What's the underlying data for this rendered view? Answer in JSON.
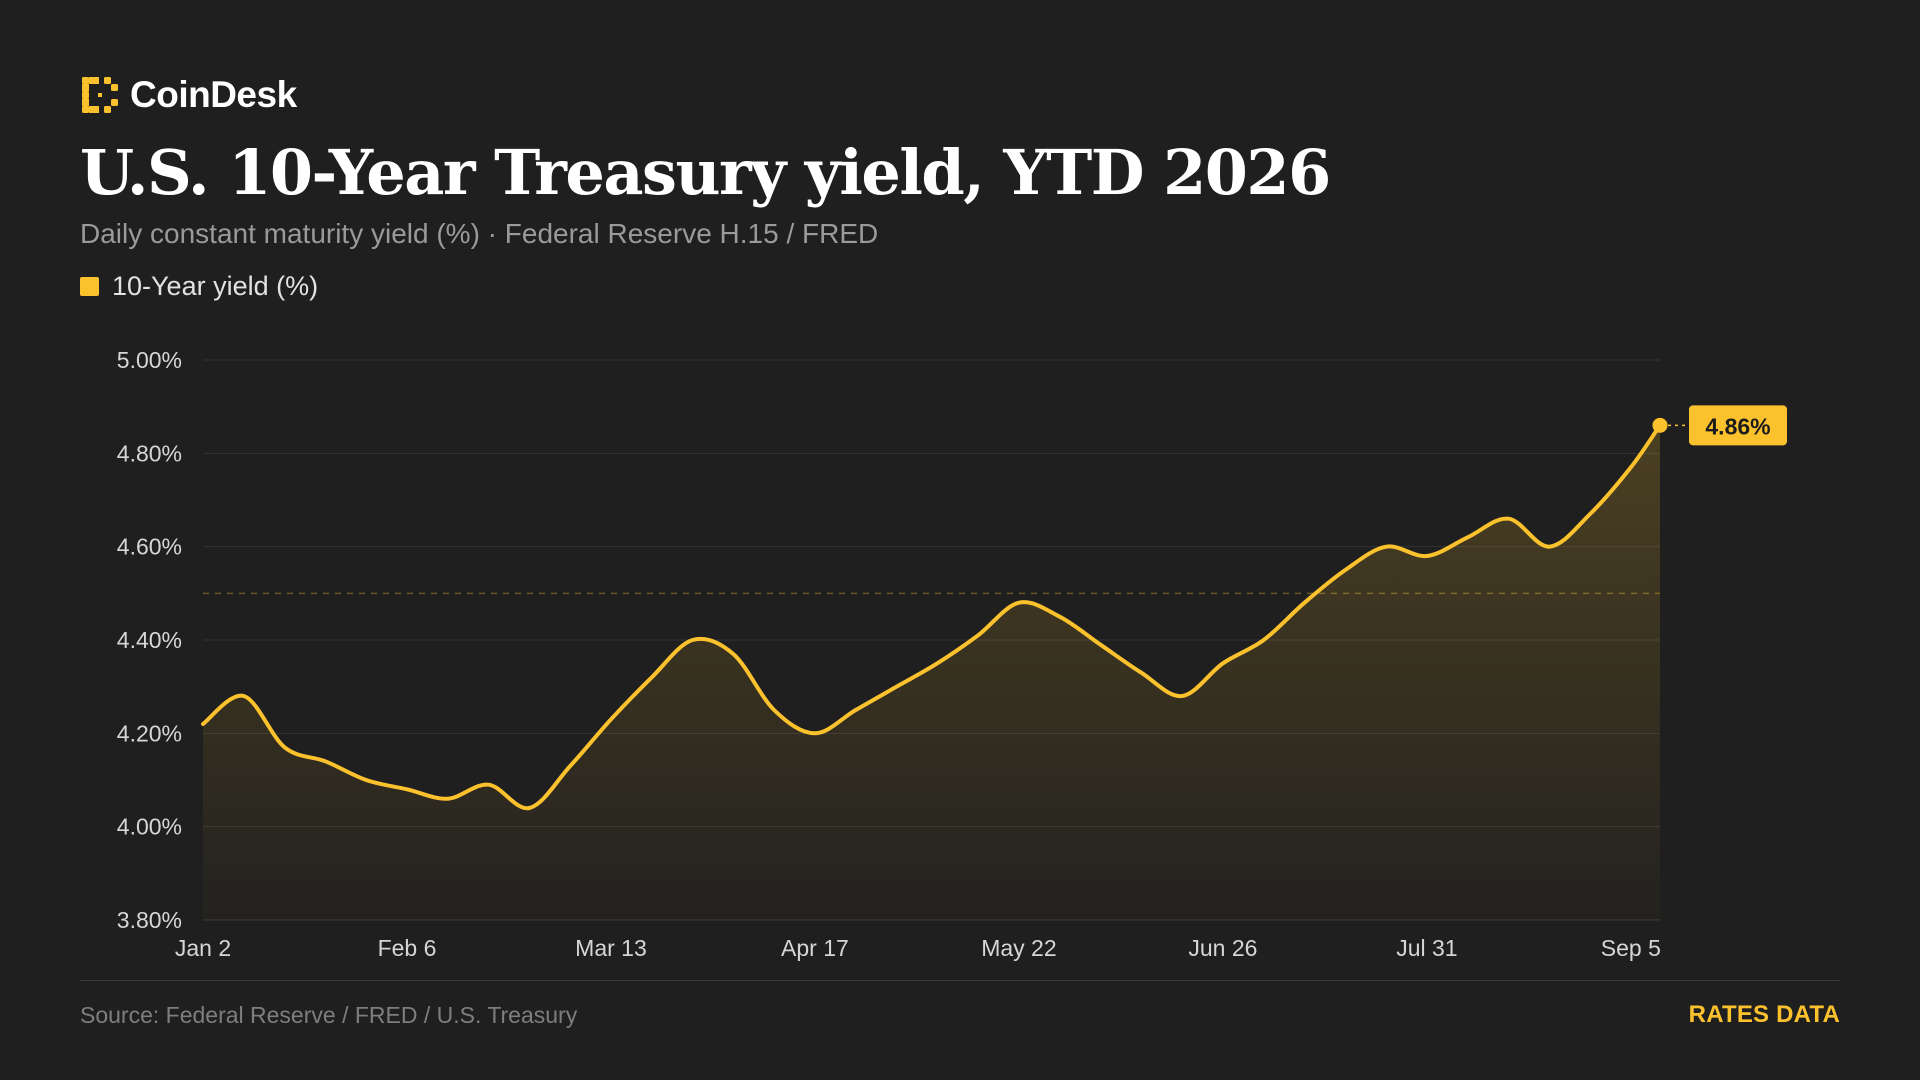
{
  "brand": {
    "name": "CoinDesk",
    "logo_icon": "coindesk-logo-icon"
  },
  "title": "U.S. 10-Year Treasury yield, YTD 2026",
  "subtitle": "Daily constant maturity yield (%) · Federal Reserve H.15 / FRED",
  "legend": {
    "label": "10-Year yield (%)",
    "color": "#fcc22d"
  },
  "footer": {
    "source": "Source: Federal Reserve / FRED / U.S. Treasury",
    "tag": "RATES DATA"
  },
  "colors": {
    "background": "#1f1f1f",
    "accent": "#fcc22d",
    "grid": "#333333",
    "text_muted": "#9a9a9a"
  },
  "chart_data": {
    "type": "area",
    "title": "U.S. 10-Year Treasury yield, YTD 2026",
    "subtitle": "Daily constant maturity yield (%) · Federal Reserve H.15 / FRED",
    "xlabel": "",
    "ylabel": "",
    "x_tick_labels": [
      "Jan 2",
      "Feb 6",
      "Mar 13",
      "Apr 17",
      "May 22",
      "Jun 26",
      "Jul 31",
      "Sep 5"
    ],
    "y_tick_labels": [
      "3.80%",
      "4.00%",
      "4.20%",
      "4.40%",
      "4.60%",
      "4.80%",
      "5.00%"
    ],
    "ylim": [
      3.8,
      5.0
    ],
    "xlim": [
      "2026-01-02",
      "2026-09-09"
    ],
    "grid": true,
    "reference_line": 4.5,
    "legend_position": "top-left",
    "series": [
      {
        "name": "10-Year yield (%)",
        "color": "#fcc22d",
        "x": [
          "2026-01-02",
          "2026-01-09",
          "2026-01-16",
          "2026-01-23",
          "2026-01-30",
          "2026-02-06",
          "2026-02-13",
          "2026-02-20",
          "2026-02-27",
          "2026-03-06",
          "2026-03-13",
          "2026-03-20",
          "2026-03-27",
          "2026-04-03",
          "2026-04-10",
          "2026-04-17",
          "2026-04-24",
          "2026-05-01",
          "2026-05-08",
          "2026-05-15",
          "2026-05-22",
          "2026-05-29",
          "2026-06-05",
          "2026-06-12",
          "2026-06-19",
          "2026-06-26",
          "2026-07-03",
          "2026-07-10",
          "2026-07-17",
          "2026-07-24",
          "2026-07-31",
          "2026-08-07",
          "2026-08-14",
          "2026-08-21",
          "2026-08-28",
          "2026-09-04",
          "2026-09-09"
        ],
        "y": [
          4.22,
          4.28,
          4.17,
          4.14,
          4.1,
          4.08,
          4.06,
          4.09,
          4.04,
          4.13,
          4.23,
          4.32,
          4.4,
          4.37,
          4.25,
          4.2,
          4.25,
          4.3,
          4.35,
          4.41,
          4.48,
          4.45,
          4.39,
          4.33,
          4.28,
          4.35,
          4.4,
          4.48,
          4.55,
          4.6,
          4.58,
          4.62,
          4.66,
          4.6,
          4.67,
          4.77,
          4.86
        ]
      }
    ],
    "last_value_label": "4.86%"
  }
}
